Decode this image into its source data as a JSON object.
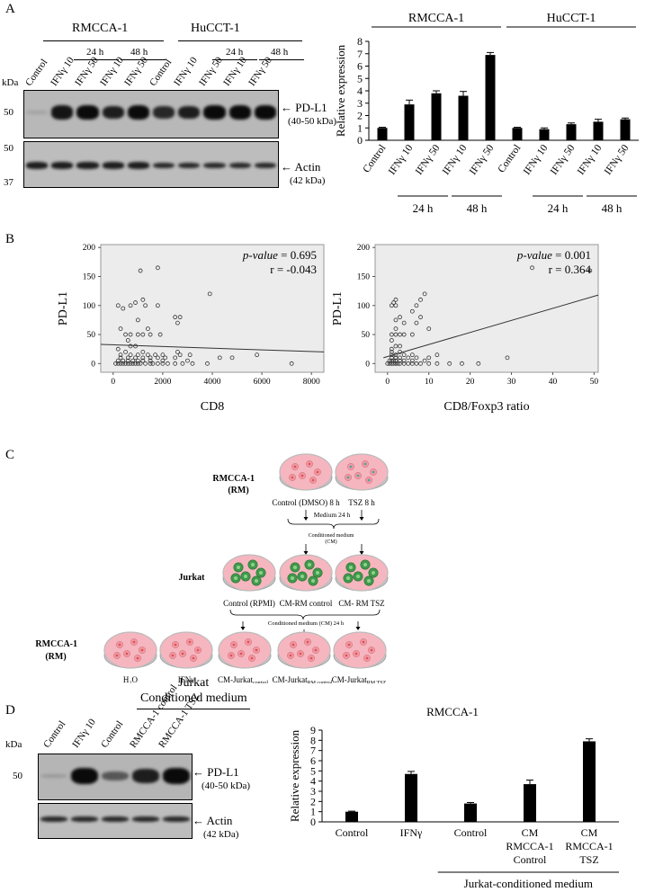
{
  "panels": {
    "a": "A",
    "b": "B",
    "c": "C",
    "d": "D"
  },
  "panelA": {
    "cell_lines": [
      "RMCCA-1",
      "HuCCT-1"
    ],
    "times": [
      "24 h",
      "48 h"
    ],
    "lanes": [
      "Control",
      "IFNγ 10",
      "IFNγ 50",
      "IFNγ 10",
      "IFNγ 50",
      "Control",
      "IFNγ 10",
      "IFNγ 50",
      "IFNγ 10",
      "IFNγ 50"
    ],
    "kda": "kDa",
    "markers": [
      "50",
      "50",
      "37"
    ],
    "bands": {
      "pdl1": "PD-L1",
      "pdl1_size": "(40-50 kDa)",
      "actin": "Actin",
      "actin_size": "(42 kDa)"
    },
    "blot_pdl1_intensity": [
      0.2,
      0.95,
      1.0,
      0.9,
      1.0,
      0.85,
      0.9,
      1.0,
      1.0,
      1.0
    ],
    "blot_actin_intensity": [
      0.9,
      0.9,
      0.9,
      0.9,
      0.9,
      0.85,
      0.85,
      0.85,
      0.85,
      0.85
    ]
  },
  "chart_data": [
    {
      "type": "bar",
      "id": "A-bar",
      "groups": [
        "RMCCA-1",
        "HuCCT-1"
      ],
      "categories": [
        "Control",
        "IFNγ 10",
        "IFNγ 50",
        "IFNγ 10",
        "IFNγ 50",
        "Control",
        "IFNγ 10",
        "IFNγ 50",
        "IFNγ 10",
        "IFNγ 50"
      ],
      "values": [
        1.0,
        2.9,
        3.8,
        3.6,
        6.9,
        1.0,
        0.9,
        1.3,
        1.5,
        1.7
      ],
      "errors": [
        0.05,
        0.35,
        0.2,
        0.35,
        0.2,
        0.05,
        0.1,
        0.1,
        0.2,
        0.1
      ],
      "time_labels": [
        "24 h",
        "48 h",
        "24 h",
        "48 h"
      ],
      "ylabel": "Relative expression",
      "ylim": [
        0,
        8
      ],
      "yticks": [
        "0",
        "1",
        "2",
        "3",
        "4",
        "5",
        "6",
        "7",
        "8"
      ]
    },
    {
      "type": "scatter",
      "id": "B-left",
      "xlabel": "CD8",
      "ylabel": "PD-L1",
      "xlim": [
        -500,
        8500
      ],
      "ylim": [
        -15,
        205
      ],
      "xticks": [
        "0",
        "2000",
        "4000",
        "6000",
        "8000"
      ],
      "yticks": [
        "0",
        "50",
        "100",
        "150",
        "200"
      ],
      "pvalue_label": "p-value",
      "pvalue_text": " = 0.695",
      "r_text": "r = -0.043",
      "fit_line": {
        "x": [
          -500,
          8500
        ],
        "y": [
          33,
          20
        ]
      },
      "points": [
        [
          100,
          0
        ],
        [
          200,
          0
        ],
        [
          300,
          0
        ],
        [
          400,
          0
        ],
        [
          500,
          0
        ],
        [
          600,
          0
        ],
        [
          700,
          0
        ],
        [
          800,
          0
        ],
        [
          900,
          0
        ],
        [
          1000,
          0
        ],
        [
          1100,
          0
        ],
        [
          1300,
          0
        ],
        [
          1500,
          0
        ],
        [
          1600,
          0
        ],
        [
          1800,
          0
        ],
        [
          2000,
          0
        ],
        [
          2200,
          0
        ],
        [
          2500,
          0
        ],
        [
          2800,
          0
        ],
        [
          3200,
          0
        ],
        [
          3800,
          0
        ],
        [
          7200,
          0
        ],
        [
          200,
          5
        ],
        [
          400,
          5
        ],
        [
          600,
          5
        ],
        [
          800,
          5
        ],
        [
          1000,
          5
        ],
        [
          1200,
          5
        ],
        [
          1500,
          5
        ],
        [
          2000,
          5
        ],
        [
          3000,
          5
        ],
        [
          300,
          10
        ],
        [
          600,
          10
        ],
        [
          900,
          10
        ],
        [
          1200,
          10
        ],
        [
          1500,
          10
        ],
        [
          1800,
          10
        ],
        [
          2100,
          10
        ],
        [
          2500,
          10
        ],
        [
          4300,
          10
        ],
        [
          4800,
          10
        ],
        [
          300,
          15
        ],
        [
          700,
          15
        ],
        [
          1000,
          15
        ],
        [
          1400,
          15
        ],
        [
          1700,
          15
        ],
        [
          2000,
          15
        ],
        [
          2700,
          15
        ],
        [
          3100,
          15
        ],
        [
          5800,
          15
        ],
        [
          500,
          20
        ],
        [
          1200,
          20
        ],
        [
          2600,
          20
        ],
        [
          200,
          25
        ],
        [
          700,
          30
        ],
        [
          900,
          30
        ],
        [
          600,
          40
        ],
        [
          500,
          50
        ],
        [
          700,
          50
        ],
        [
          1000,
          50
        ],
        [
          1200,
          50
        ],
        [
          1500,
          50
        ],
        [
          1900,
          50
        ],
        [
          300,
          60
        ],
        [
          1400,
          60
        ],
        [
          2600,
          70
        ],
        [
          1000,
          75
        ],
        [
          2500,
          80
        ],
        [
          2700,
          80
        ],
        [
          1300,
          100
        ],
        [
          1800,
          100
        ],
        [
          200,
          100
        ],
        [
          400,
          95
        ],
        [
          700,
          100
        ],
        [
          900,
          105
        ],
        [
          1200,
          110
        ],
        [
          3900,
          120
        ],
        [
          1100,
          160
        ],
        [
          1800,
          165
        ]
      ]
    },
    {
      "type": "scatter",
      "id": "B-right",
      "xlabel": "CD8/Foxp3 ratio",
      "ylabel": "PD-L1",
      "xlim": [
        -3,
        51
      ],
      "ylim": [
        -15,
        205
      ],
      "xticks": [
        "0",
        "10",
        "20",
        "30",
        "40",
        "50"
      ],
      "yticks": [
        "0",
        "50",
        "100",
        "150",
        "200"
      ],
      "pvalue_label": "p-value",
      "pvalue_text": " = 0.001",
      "r_text": "r = 0.364",
      "fit_line": {
        "x": [
          -1,
          51
        ],
        "y": [
          10,
          118
        ]
      },
      "points": [
        [
          0,
          0
        ],
        [
          0.5,
          0
        ],
        [
          1,
          0
        ],
        [
          1.5,
          0
        ],
        [
          2,
          0
        ],
        [
          2.5,
          0
        ],
        [
          3,
          0
        ],
        [
          4,
          0
        ],
        [
          5,
          0
        ],
        [
          6,
          0
        ],
        [
          7,
          0
        ],
        [
          8,
          0
        ],
        [
          10,
          0
        ],
        [
          12,
          0
        ],
        [
          15,
          0
        ],
        [
          18,
          0
        ],
        [
          22,
          0
        ],
        [
          0.5,
          5
        ],
        [
          1,
          5
        ],
        [
          1.5,
          5
        ],
        [
          2,
          5
        ],
        [
          3,
          5
        ],
        [
          4,
          5
        ],
        [
          6,
          5
        ],
        [
          9,
          5
        ],
        [
          1,
          10
        ],
        [
          2,
          10
        ],
        [
          3,
          10
        ],
        [
          5,
          10
        ],
        [
          7,
          10
        ],
        [
          10,
          10
        ],
        [
          29,
          10
        ],
        [
          1,
          15
        ],
        [
          2,
          15
        ],
        [
          4,
          15
        ],
        [
          6,
          15
        ],
        [
          12,
          15
        ],
        [
          1,
          20
        ],
        [
          3,
          20
        ],
        [
          1,
          25
        ],
        [
          2,
          30
        ],
        [
          3,
          30
        ],
        [
          1,
          40
        ],
        [
          2,
          50
        ],
        [
          3,
          50
        ],
        [
          1,
          50
        ],
        [
          4,
          50
        ],
        [
          6,
          50
        ],
        [
          2,
          60
        ],
        [
          10,
          60
        ],
        [
          4,
          70
        ],
        [
          7,
          70
        ],
        [
          2,
          75
        ],
        [
          3,
          80
        ],
        [
          8,
          80
        ],
        [
          6,
          90
        ],
        [
          2,
          100
        ],
        [
          7,
          100
        ],
        [
          1.5,
          105
        ],
        [
          2,
          110
        ],
        [
          8,
          110
        ],
        [
          1,
          100
        ],
        [
          9,
          120
        ],
        [
          35,
          165
        ],
        [
          49,
          160
        ]
      ]
    },
    {
      "type": "bar",
      "id": "D-bar",
      "title": "RMCCA-1",
      "categories": [
        "Control",
        "IFNγ",
        "Control",
        "CM RMCCA-1 Control",
        "CM RMCCA-1 TSZ"
      ],
      "category_lines": [
        [
          "Control"
        ],
        [
          "IFNγ"
        ],
        [
          "Control"
        ],
        [
          "CM",
          "RMCCA-1",
          "Control"
        ],
        [
          "CM",
          "RMCCA-1",
          "TSZ"
        ]
      ],
      "values": [
        1.0,
        4.7,
        1.8,
        3.7,
        7.9
      ],
      "errors": [
        0.05,
        0.25,
        0.1,
        0.4,
        0.25
      ],
      "ylabel": "Relative expression",
      "ylim": [
        0,
        9
      ],
      "yticks": [
        "0",
        "1",
        "2",
        "3",
        "4",
        "5",
        "6",
        "7",
        "8",
        "9"
      ],
      "group_label": "Jurkat-conditioned medium"
    }
  ],
  "panelC": {
    "rm_title": "RMCCA-1",
    "rm_abbr": "(RM)",
    "dish1": "Control (DMSO) 8 h",
    "dish2": "TSZ 8 h",
    "medium": "Medium 24 h",
    "cm1": "Conditioned medium",
    "cm1b": "(CM)",
    "jurkat": "Jurkat",
    "j1": "Control (RPMI)",
    "j2": "CM-RM control",
    "j3": "CM- RM TSZ",
    "cm24": "Conditioned medium (CM) 24 h",
    "r1": "H₂O",
    "r2": "IFNγ",
    "r3": "CM-Jurkat",
    "r3s": "control",
    "r4": "CM-Jurkat",
    "r4s": "RM control",
    "r5": "CM-Jurkat",
    "r5s": "RM TSZ"
  },
  "panelD": {
    "header1": "Jurkat",
    "header2": "Conditioned medium",
    "lanes": [
      "Control",
      "IFNγ 10",
      "Control",
      "RMCCA-1 control",
      "RMCCA-1 TSZ"
    ],
    "kda": "kDa",
    "marker": "50",
    "pdl1": "PD-L1",
    "pdl1_size": "(40-50 kDa)",
    "actin": "Actin",
    "actin_size": "(42 kDa)",
    "blot_pdl1_intensity": [
      0.25,
      1.0,
      0.6,
      0.9,
      1.0
    ],
    "blot_actin_intensity": [
      0.85,
      0.85,
      0.85,
      0.85,
      0.85
    ]
  },
  "colors": {
    "bar": "#000000",
    "dish_pink": "#f6b6bf",
    "dish_rim": "#c9c9cf",
    "cell_green": "#3f9a4a",
    "cell_teal": "#4aa6a2",
    "cell_red": "#e0525a",
    "fit_line": "#333333",
    "scatter_bg": "#ececec"
  }
}
